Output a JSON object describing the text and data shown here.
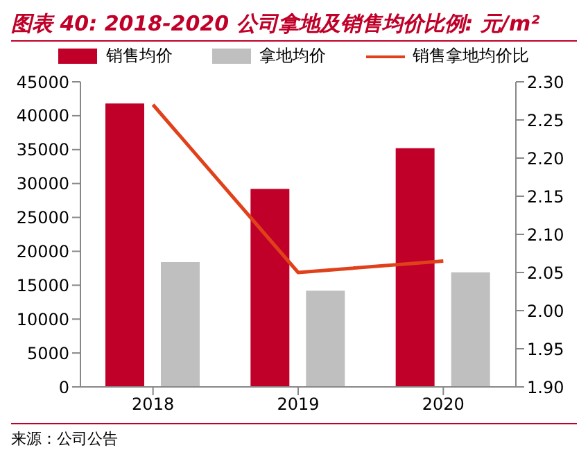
{
  "chart_data": {
    "type": "bar",
    "title": "图表 40: 2018-2020 公司拿地及销售均价比例: 元/m²",
    "categories": [
      "2018",
      "2019",
      "2020"
    ],
    "series": [
      {
        "name": "销售均价",
        "color": "#c00029",
        "values": [
          41800,
          29200,
          35200
        ]
      },
      {
        "name": "拿地均价",
        "color": "#bfbfbf",
        "values": [
          18400,
          14200,
          16900
        ]
      },
      {
        "name": "销售拿地均价比",
        "type": "line",
        "axis": "y2",
        "color": "#e0401a",
        "values": [
          2.27,
          2.05,
          2.065
        ]
      }
    ],
    "ylim": [
      0,
      45000
    ],
    "yticks": [
      0,
      5000,
      10000,
      15000,
      20000,
      25000,
      30000,
      35000,
      40000,
      45000
    ],
    "y2lim": [
      1.9,
      2.3
    ],
    "y2ticks": [
      {
        "value": 1.9,
        "label": "1.90"
      },
      {
        "value": 1.95,
        "label": "1.95"
      },
      {
        "value": 2.0,
        "label": "2.00"
      },
      {
        "value": 2.05,
        "label": "2.05"
      },
      {
        "value": 2.1,
        "label": "2.10"
      },
      {
        "value": 2.15,
        "label": "2.15"
      },
      {
        "value": 2.2,
        "label": "2.20"
      },
      {
        "value": 2.25,
        "label": "2.25"
      },
      {
        "value": 2.3,
        "label": "2.30"
      }
    ],
    "grid": false,
    "legend": "top",
    "marker": "none",
    "annotations": [
      "来源：公司公告"
    ]
  }
}
